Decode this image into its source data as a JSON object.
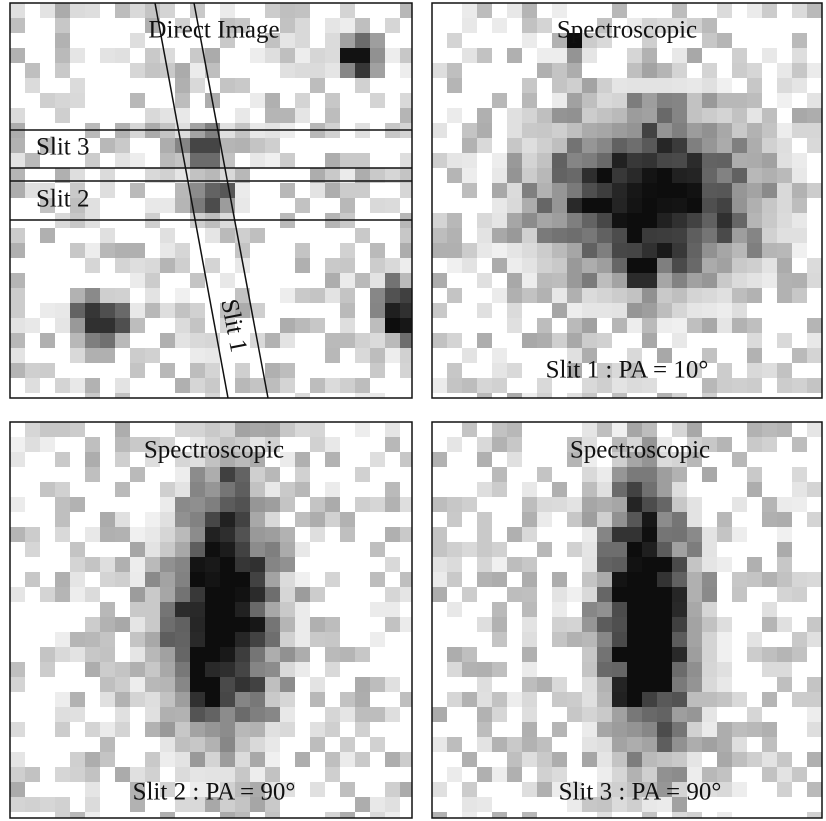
{
  "panels": [
    {
      "title": "Direct Image",
      "slits": [
        "Slit 3",
        "Slit 2",
        "Slit 1"
      ]
    },
    {
      "title": "Spectroscopic",
      "caption": "Slit 1 : PA = 10°"
    },
    {
      "title": "Spectroscopic",
      "caption": "Slit 2 : PA = 90°"
    },
    {
      "title": "Spectroscopic",
      "caption": "Slit 3 : PA = 90°"
    }
  ]
}
